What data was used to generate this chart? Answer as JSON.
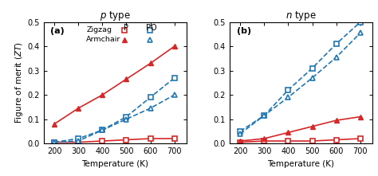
{
  "temp": [
    200,
    300,
    400,
    500,
    600,
    700
  ],
  "panel_a": {
    "title_italic": "p",
    "title_normal": " type",
    "label": "(a)",
    "zigzag_P": [
      0.005,
      0.005,
      0.01,
      0.015,
      0.02,
      0.02
    ],
    "zigzag_PO": [
      0.005,
      0.02,
      0.055,
      0.11,
      0.19,
      0.27
    ],
    "armchair_P": [
      0.08,
      0.145,
      0.2,
      0.265,
      0.33,
      0.4
    ],
    "armchair_PO": [
      0.005,
      0.01,
      0.055,
      0.1,
      0.145,
      0.2
    ]
  },
  "panel_b": {
    "title_italic": "n",
    "title_normal": " type",
    "label": "(b)",
    "zigzag_P": [
      0.005,
      0.01,
      0.01,
      0.01,
      0.015,
      0.02
    ],
    "zigzag_PO": [
      0.05,
      0.115,
      0.22,
      0.31,
      0.41,
      0.5
    ],
    "armchair_P": [
      0.01,
      0.02,
      0.045,
      0.07,
      0.095,
      0.11
    ],
    "armchair_PO": [
      0.04,
      0.115,
      0.19,
      0.27,
      0.355,
      0.455
    ]
  },
  "red": "#d62728",
  "blue": "#1f77b4",
  "ylim": [
    0,
    0.5
  ],
  "yticks": [
    0.0,
    0.1,
    0.2,
    0.3,
    0.4,
    0.5
  ],
  "xticks": [
    200,
    300,
    400,
    500,
    600,
    700
  ]
}
